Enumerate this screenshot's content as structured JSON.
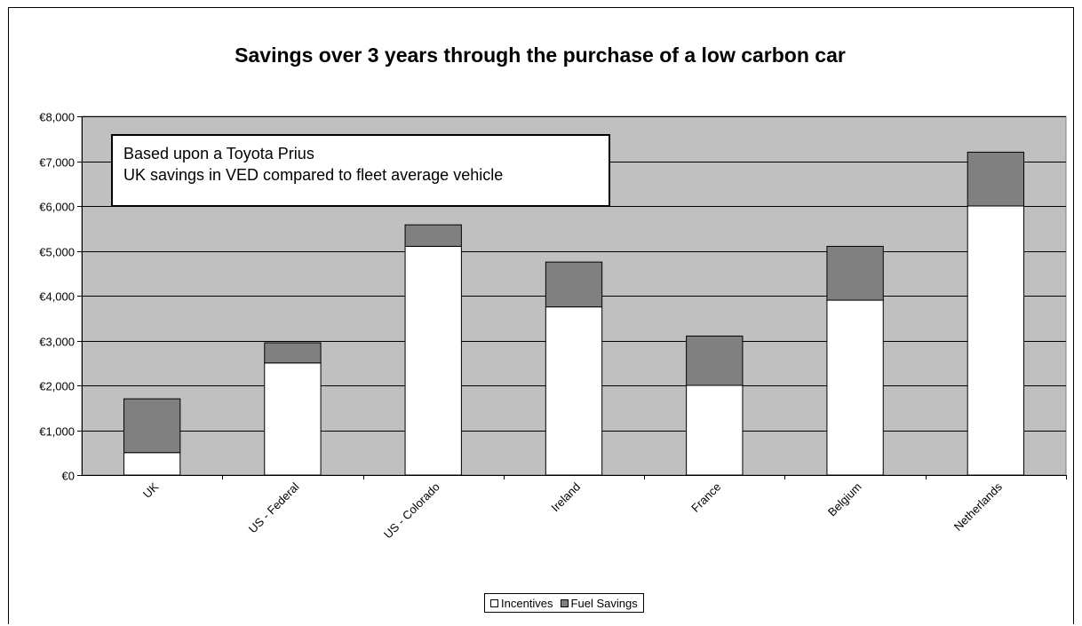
{
  "chart_data": {
    "type": "bar",
    "stacked": true,
    "title": "Savings over 3 years through the purchase of a low carbon car",
    "xlabel": "",
    "ylabel": "",
    "ylim": [
      0,
      8000
    ],
    "yticks": [
      0,
      1000,
      2000,
      3000,
      4000,
      5000,
      6000,
      7000,
      8000
    ],
    "ytick_labels": [
      "€0",
      "€1,000",
      "€2,000",
      "€3,000",
      "€4,000",
      "€5,000",
      "€6,000",
      "€7,000",
      "€8,000"
    ],
    "categories": [
      "UK",
      "US - Federal",
      "US - Colorado",
      "Ireland",
      "France",
      "Belgium",
      "Netherlands"
    ],
    "series": [
      {
        "name": "Incentives",
        "color": "#ffffff",
        "values": [
          500,
          2500,
          5100,
          3750,
          2000,
          3900,
          6000
        ]
      },
      {
        "name": "Fuel Savings",
        "color": "#808080",
        "values": [
          1200,
          450,
          480,
          1000,
          1100,
          1200,
          1200
        ]
      }
    ],
    "plot_background": "#c0c0c0",
    "grid": true,
    "legend_position": "bottom",
    "annotation": {
      "lines": [
        "Based upon a Toyota Prius",
        "UK savings in VED compared to fleet average vehicle"
      ]
    }
  }
}
